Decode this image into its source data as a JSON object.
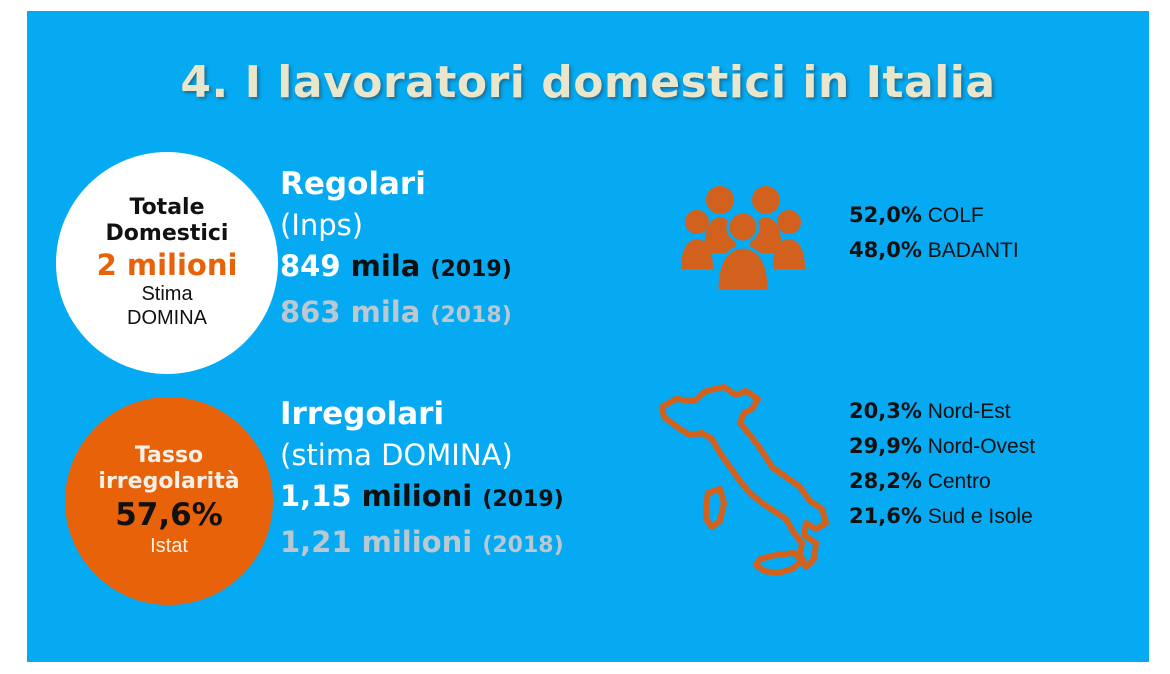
{
  "title": "4. I lavoratori domestici in Italia",
  "total_circle": {
    "line1": "Totale",
    "line2": "Domestici",
    "value": "2 milioni",
    "note1": "Stima",
    "note2": "DOMINA"
  },
  "irregularity_circle": {
    "line1": "Tasso",
    "line2": "irregolarità",
    "value": "57,6%",
    "source": "Istat"
  },
  "regolari": {
    "heading": "Regolari",
    "source": "(Inps)",
    "current_value": "849",
    "current_unit": "mila",
    "current_year": "(2019)",
    "previous": "863 mila",
    "previous_year": "(2018)"
  },
  "irregolari": {
    "heading": "Irregolari",
    "source": "(stima DOMINA)",
    "current_value": "1,15",
    "current_unit": "milioni",
    "current_year": "(2019)",
    "previous": "1,21 milioni",
    "previous_year": "(2018)"
  },
  "job_split": [
    {
      "pct": "52,0%",
      "label": "COLF"
    },
    {
      "pct": "48,0%",
      "label": "BADANTI"
    }
  ],
  "area_split": [
    {
      "pct": "20,3%",
      "label": "Nord-Est"
    },
    {
      "pct": "29,9%",
      "label": "Nord-Ovest"
    },
    {
      "pct": "28,2%",
      "label": "Centro"
    },
    {
      "pct": "21,6%",
      "label": "Sud e Isole"
    }
  ],
  "colors": {
    "background": "#05aaf2",
    "accent": "#e8620a",
    "title": "#e9e6cc"
  },
  "icons": [
    "people-group-icon",
    "italy-map-icon"
  ]
}
